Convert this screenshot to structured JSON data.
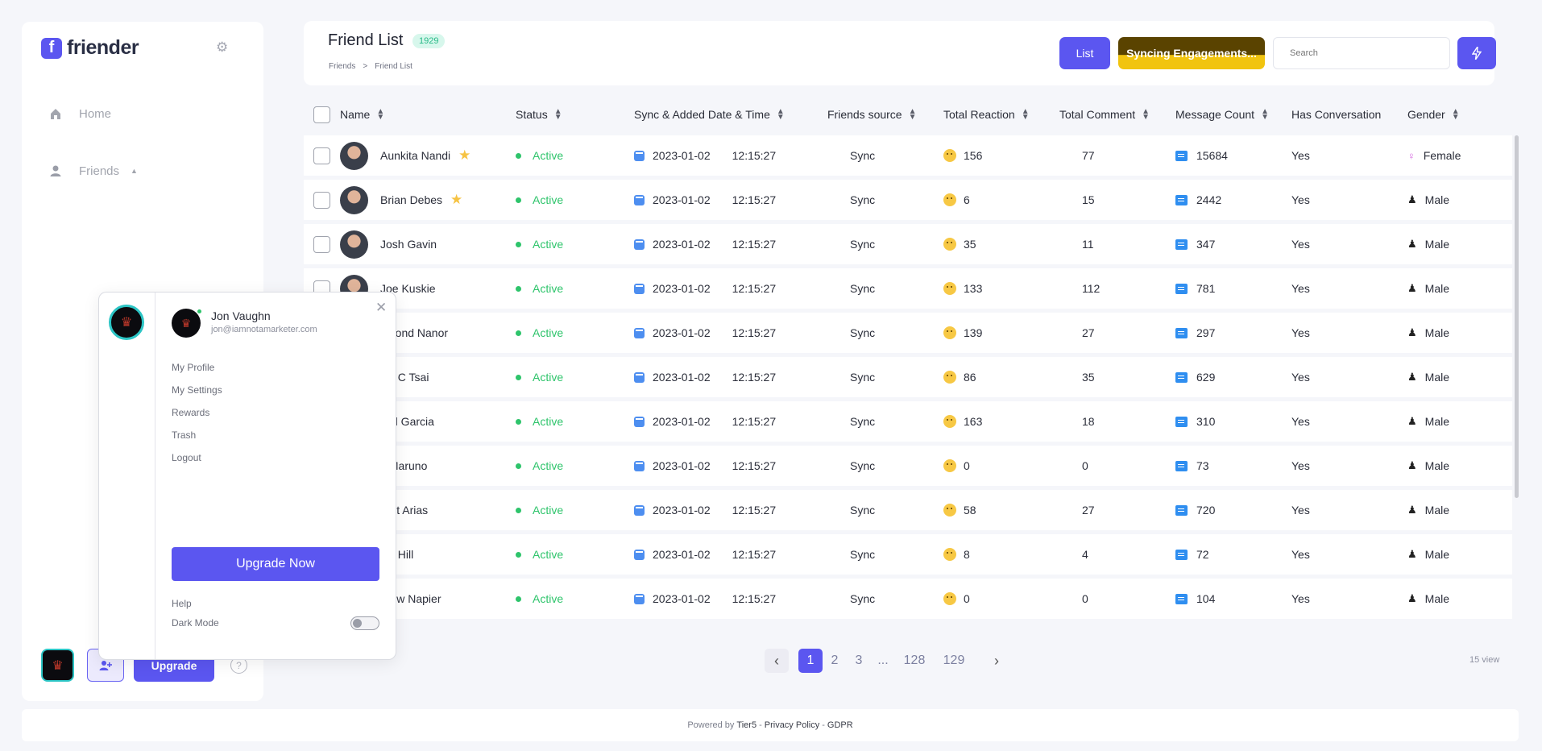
{
  "app": {
    "logo_letter": "f",
    "name": "friender"
  },
  "sidebar": {
    "items": [
      {
        "label": "Home",
        "icon": "home-icon"
      },
      {
        "label": "Friends",
        "icon": "user-icon"
      }
    ],
    "upgrade_label": "Upgrade",
    "help_label": "?"
  },
  "header": {
    "title": "Friend List",
    "count": "1929",
    "breadcrumb": [
      "Friends",
      ">",
      "Friend List"
    ],
    "list_label": "List",
    "sync_label": "Syncing Engagements...",
    "search_placeholder": "Search"
  },
  "table": {
    "columns": [
      "Name",
      "Status",
      "Sync & Added Date & Time",
      "Friends source",
      "Total Reaction",
      "Total Comment",
      "Message Count",
      "Has Conversation",
      "Gender"
    ],
    "rows": [
      {
        "name": "Aunkita Nandi",
        "starred": true,
        "status": "Active",
        "date": "2023-01-02",
        "time": "12:15:27",
        "source": "Sync",
        "reaction": "156",
        "comment": "77",
        "messages": "15684",
        "conversation": "Yes",
        "gender": "Female"
      },
      {
        "name": "Brian Debes",
        "starred": true,
        "status": "Active",
        "date": "2023-01-02",
        "time": "12:15:27",
        "source": "Sync",
        "reaction": "6",
        "comment": "15",
        "messages": "2442",
        "conversation": "Yes",
        "gender": "Male"
      },
      {
        "name": "Josh Gavin",
        "starred": false,
        "status": "Active",
        "date": "2023-01-02",
        "time": "12:15:27",
        "source": "Sync",
        "reaction": "35",
        "comment": "11",
        "messages": "347",
        "conversation": "Yes",
        "gender": "Male"
      },
      {
        "name": "Joe Kuskie",
        "starred": false,
        "status": "Active",
        "date": "2023-01-02",
        "time": "12:15:27",
        "source": "Sync",
        "reaction": "133",
        "comment": "112",
        "messages": "781",
        "conversation": "Yes",
        "gender": "Male"
      },
      {
        "name": "smond Nanor",
        "starred": false,
        "status": "Active",
        "date": "2023-01-02",
        "time": "12:15:27",
        "source": "Sync",
        "reaction": "139",
        "comment": "27",
        "messages": "297",
        "conversation": "Yes",
        "gender": "Male"
      },
      {
        "name": "vin C Tsai",
        "starred": false,
        "status": "Active",
        "date": "2023-01-02",
        "time": "12:15:27",
        "source": "Sync",
        "reaction": "86",
        "comment": "35",
        "messages": "629",
        "conversation": "Yes",
        "gender": "Male"
      },
      {
        "name": "niel Garcia",
        "starred": false,
        "status": "Active",
        "date": "2023-01-02",
        "time": "12:15:27",
        "source": "Sync",
        "reaction": "163",
        "comment": "18",
        "messages": "310",
        "conversation": "Yes",
        "gender": "Male"
      },
      {
        "name": "s Maruno",
        "starred": false,
        "status": "Active",
        "date": "2023-01-02",
        "time": "12:15:27",
        "source": "Sync",
        "reaction": "0",
        "comment": "0",
        "messages": "73",
        "conversation": "Yes",
        "gender": "Male"
      },
      {
        "name": "bert Arias",
        "starred": false,
        "status": "Active",
        "date": "2023-01-02",
        "time": "12:15:27",
        "source": "Sync",
        "reaction": "58",
        "comment": "27",
        "messages": "720",
        "conversation": "Yes",
        "gender": "Male"
      },
      {
        "name": "vin Hill",
        "starred": false,
        "status": "Active",
        "date": "2023-01-02",
        "time": "12:15:27",
        "source": "Sync",
        "reaction": "8",
        "comment": "4",
        "messages": "72",
        "conversation": "Yes",
        "gender": "Male"
      },
      {
        "name": "drew Napier",
        "starred": false,
        "status": "Active",
        "date": "2023-01-02",
        "time": "12:15:27",
        "source": "Sync",
        "reaction": "0",
        "comment": "0",
        "messages": "104",
        "conversation": "Yes",
        "gender": "Male"
      }
    ]
  },
  "pagination": {
    "pages": [
      "1",
      "2",
      "3",
      "...",
      "128",
      "129"
    ],
    "current": "1",
    "views": "15 view"
  },
  "footer": {
    "powered_by": "Powered by",
    "company": "Tier5",
    "sep1": "-",
    "privacy": "Privacy Policy",
    "sep2": "-",
    "gdpr": "GDPR"
  },
  "profile_popup": {
    "name": "Jon Vaughn",
    "email": "jon@iamnotamarketer.com",
    "menu": [
      "My Profile",
      "My Settings",
      "Rewards",
      "Trash",
      "Logout"
    ],
    "upgrade_label": "Upgrade Now",
    "help_label": "Help",
    "dark_mode_label": "Dark Mode",
    "dark_mode_on": false
  },
  "colors": {
    "accent": "#5b56f0",
    "active": "#2ec46b",
    "sync": "#f1c40f",
    "badge_bg": "#d7f7ec"
  }
}
